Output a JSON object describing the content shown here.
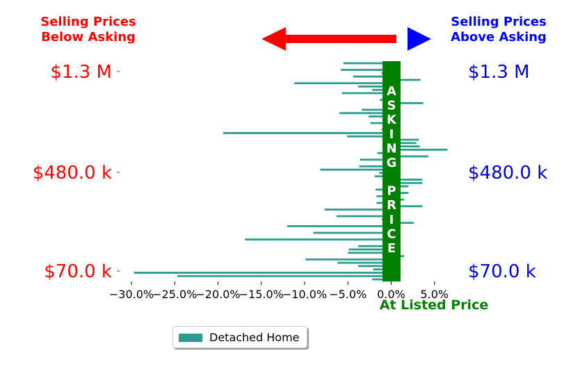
{
  "headers": {
    "below": [
      "Selling Prices",
      "Below Asking"
    ],
    "above": [
      "Selling Prices",
      "Above Asking"
    ]
  },
  "chart_data": {
    "type": "bar",
    "orientation": "horizontal",
    "series": [
      {
        "name": "Detached Home",
        "color": "#2a9d8f"
      }
    ],
    "x_ticks": [
      "−30.0%",
      "−25.0%",
      "−20.0%",
      "−15.0%",
      "−10.0%",
      "−5.0%",
      "0.0%",
      "5.0%"
    ],
    "x_tick_values": [
      -30,
      -25,
      -20,
      -15,
      -10,
      -5,
      0,
      5
    ],
    "xlim": [
      -30.5,
      7
    ],
    "xlabel": "At Listed Price",
    "y_left_labels": [
      "$1.3 M",
      "$480.0 k",
      "$70.0 k"
    ],
    "y_right_labels": [
      "$1.3 M",
      "$480.0 k",
      "$70.0 k"
    ],
    "asking_band_text": "ASKING PRICE",
    "asking_band_color": "#008000",
    "left_label_color": "#ff0000",
    "right_label_color": "#0000dd",
    "arrow_left_color": "#ff0000",
    "arrow_right_color": "#0000ff",
    "values": [
      -5.5,
      0.5,
      -5.8,
      -1.1,
      -4.4,
      3.4,
      -11.2,
      -3.8,
      -2.2,
      -5.7,
      0.3,
      -1.3,
      3.7,
      0.8,
      -3.4,
      -6.0,
      -2.6,
      0.4,
      -2.4,
      0.2,
      -1.1,
      -19.4,
      -5.1,
      3.2,
      2.9,
      3.3,
      6.5,
      -1.6,
      4.3,
      -3.6,
      -1.0,
      -3.7,
      -8.2,
      -1.4,
      -1.9,
      3.6,
      3.6,
      2.0,
      -1.8,
      2.0,
      -1.7,
      1.5,
      -1.7,
      3.6,
      -7.7,
      -0.6,
      -6.3,
      -1.1,
      2.6,
      -12.0,
      -1.0,
      -9.0,
      -0.8,
      -16.9,
      0.9,
      -3.8,
      -4.9,
      -5.0,
      1.5,
      -9.9,
      -6.2,
      -3.8,
      -2.1,
      -29.7,
      -24.7,
      -2.2
    ]
  },
  "legend": {
    "label": "Detached Home"
  }
}
